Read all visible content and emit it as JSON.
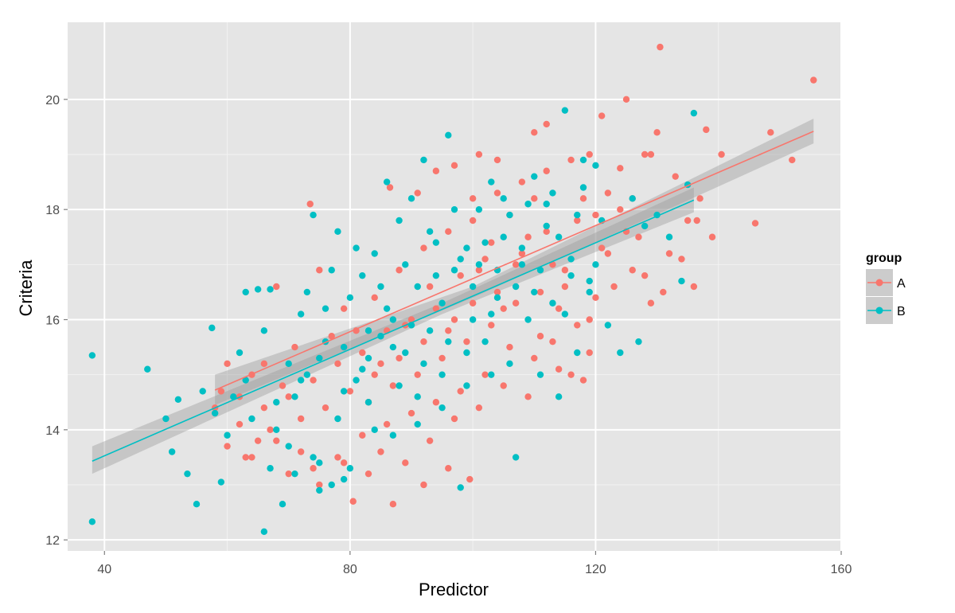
{
  "chart_data": {
    "type": "scatter",
    "title": "",
    "xlabel": "Predictor",
    "ylabel": "Criteria",
    "xlim": [
      34,
      160
    ],
    "ylim": [
      11.8,
      21.4
    ],
    "x_ticks": [
      "40",
      "80",
      "120",
      "160"
    ],
    "y_ticks": [
      "12",
      "14",
      "16",
      "18",
      "20"
    ],
    "x_tick_values": [
      40,
      80,
      120,
      160
    ],
    "y_tick_values": [
      12,
      14,
      16,
      18,
      20
    ],
    "grid": true,
    "legend": {
      "title": "group",
      "position": "right",
      "entries": [
        "A",
        "B"
      ]
    },
    "series": [
      {
        "name": "A",
        "color": "#F8766D",
        "fit": {
          "x": [
            58,
            155.5
          ],
          "y": [
            14.72,
            19.42
          ],
          "se_band": [
            [
              58,
              14.45,
              15.0
            ],
            [
              100,
              16.4,
              16.6
            ],
            [
              155.5,
              19.2,
              19.65
            ]
          ]
        },
        "points": [
          [
            155.5,
            20.35
          ],
          [
            130.5,
            20.95
          ],
          [
            148.5,
            19.4
          ],
          [
            152,
            18.9
          ],
          [
            146,
            17.75
          ],
          [
            140.5,
            19.0
          ],
          [
            138,
            19.45
          ],
          [
            136.5,
            17.8
          ],
          [
            136,
            16.6
          ],
          [
            133,
            18.6
          ],
          [
            130,
            19.4
          ],
          [
            128,
            19.0
          ],
          [
            126,
            18.2
          ],
          [
            124,
            18.75
          ],
          [
            122,
            17.2
          ],
          [
            120,
            17.9
          ],
          [
            118,
            18.2
          ],
          [
            115,
            16.9
          ],
          [
            112,
            17.6
          ],
          [
            110,
            18.2
          ],
          [
            108,
            17.2
          ],
          [
            106,
            17.9
          ],
          [
            104,
            16.5
          ],
          [
            102,
            17.1
          ],
          [
            100,
            16.3
          ],
          [
            98,
            16.8
          ],
          [
            96,
            15.8
          ],
          [
            94,
            16.2
          ],
          [
            92,
            15.6
          ],
          [
            90,
            16.0
          ],
          [
            88,
            15.3
          ],
          [
            86,
            15.8
          ],
          [
            84,
            15.0
          ],
          [
            82,
            15.4
          ],
          [
            80,
            14.7
          ],
          [
            78,
            15.2
          ],
          [
            76,
            14.4
          ],
          [
            74,
            14.9
          ],
          [
            72,
            14.2
          ],
          [
            70,
            14.6
          ],
          [
            68,
            13.8
          ],
          [
            66,
            14.4
          ],
          [
            64,
            13.5
          ],
          [
            62,
            14.1
          ],
          [
            60,
            13.7
          ],
          [
            58,
            14.4
          ],
          [
            73.5,
            18.1
          ],
          [
            68,
            16.6
          ],
          [
            80.5,
            12.7
          ],
          [
            87,
            12.65
          ],
          [
            99.5,
            13.1
          ],
          [
            96,
            13.3
          ],
          [
            92,
            13.0
          ],
          [
            110,
            19.4
          ],
          [
            112,
            19.55
          ],
          [
            121,
            19.7
          ],
          [
            125,
            20.0
          ],
          [
            129,
            19.0
          ],
          [
            104,
            18.9
          ],
          [
            101,
            19.0
          ],
          [
            97,
            18.8
          ],
          [
            94,
            18.7
          ],
          [
            91,
            18.3
          ],
          [
            86.5,
            18.4
          ],
          [
            100,
            17.8
          ],
          [
            103,
            17.4
          ],
          [
            107,
            17.0
          ],
          [
            111,
            16.5
          ],
          [
            114,
            16.2
          ],
          [
            117,
            15.9
          ],
          [
            120,
            16.4
          ],
          [
            123,
            16.6
          ],
          [
            126,
            16.9
          ],
          [
            129,
            16.3
          ],
          [
            132,
            17.2
          ],
          [
            135,
            17.8
          ],
          [
            118,
            14.9
          ],
          [
            114,
            15.1
          ],
          [
            110,
            15.3
          ],
          [
            106,
            15.5
          ],
          [
            102,
            15.0
          ],
          [
            98,
            14.7
          ],
          [
            94,
            14.5
          ],
          [
            90,
            14.3
          ],
          [
            86,
            14.1
          ],
          [
            82,
            13.9
          ],
          [
            78,
            13.5
          ],
          [
            74,
            13.3
          ],
          [
            70,
            13.2
          ],
          [
            84,
            16.4
          ],
          [
            88,
            16.9
          ],
          [
            92,
            17.3
          ],
          [
            96,
            17.6
          ],
          [
            100,
            18.2
          ],
          [
            104,
            18.3
          ],
          [
            108,
            18.5
          ],
          [
            112,
            18.7
          ],
          [
            116,
            18.9
          ],
          [
            119,
            19.0
          ],
          [
            122,
            18.3
          ],
          [
            125,
            17.6
          ],
          [
            128,
            16.8
          ],
          [
            131,
            16.5
          ],
          [
            134,
            17.1
          ],
          [
            137,
            18.2
          ],
          [
            139,
            17.5
          ],
          [
            89,
            15.9
          ],
          [
            93,
            16.6
          ],
          [
            97,
            16.0
          ],
          [
            101,
            16.9
          ],
          [
            105,
            16.2
          ],
          [
            109,
            17.5
          ],
          [
            113,
            17.0
          ],
          [
            117,
            17.8
          ],
          [
            121,
            17.3
          ],
          [
            124,
            18.0
          ],
          [
            127,
            17.5
          ],
          [
            81,
            15.8
          ],
          [
            85,
            15.2
          ],
          [
            79,
            16.2
          ],
          [
            75,
            16.9
          ],
          [
            77,
            15.7
          ],
          [
            83,
            14.5
          ],
          [
            87,
            14.8
          ],
          [
            91,
            15.0
          ],
          [
            95,
            15.3
          ],
          [
            99,
            15.6
          ],
          [
            103,
            15.9
          ],
          [
            107,
            16.3
          ],
          [
            111,
            15.7
          ],
          [
            115,
            16.6
          ],
          [
            119,
            16.0
          ],
          [
            66,
            15.2
          ],
          [
            64,
            15.0
          ],
          [
            62,
            14.6
          ],
          [
            60,
            15.2
          ],
          [
            59,
            14.7
          ],
          [
            63,
            13.5
          ],
          [
            65,
            13.8
          ],
          [
            67,
            14.0
          ],
          [
            69,
            14.8
          ],
          [
            71,
            15.5
          ],
          [
            72,
            13.6
          ],
          [
            75,
            13.0
          ],
          [
            79,
            13.4
          ],
          [
            83,
            13.2
          ],
          [
            85,
            13.6
          ],
          [
            89,
            13.4
          ],
          [
            93,
            13.8
          ],
          [
            97,
            14.2
          ],
          [
            101,
            14.4
          ],
          [
            105,
            14.8
          ],
          [
            109,
            14.6
          ],
          [
            113,
            15.6
          ],
          [
            116,
            15.0
          ],
          [
            119,
            15.4
          ]
        ]
      },
      {
        "name": "B",
        "color": "#00BFC4",
        "fit": {
          "x": [
            38,
            136
          ],
          "y": [
            13.43,
            18.17
          ],
          "se_band": [
            [
              38,
              13.2,
              13.7
            ],
            [
              95,
              16.1,
              16.3
            ],
            [
              136,
              17.95,
              18.4
            ]
          ]
        },
        "points": [
          [
            38,
            15.35
          ],
          [
            38,
            12.33
          ],
          [
            47,
            15.1
          ],
          [
            50,
            14.2
          ],
          [
            52,
            14.55
          ],
          [
            53.5,
            13.2
          ],
          [
            55,
            12.65
          ],
          [
            51,
            13.6
          ],
          [
            56,
            14.7
          ],
          [
            57.5,
            15.85
          ],
          [
            59,
            13.05
          ],
          [
            61,
            14.6
          ],
          [
            63,
            16.5
          ],
          [
            65,
            16.55
          ],
          [
            66,
            12.15
          ],
          [
            67,
            16.55
          ],
          [
            68,
            14.0
          ],
          [
            69,
            12.65
          ],
          [
            70,
            15.2
          ],
          [
            71,
            14.6
          ],
          [
            72,
            16.1
          ],
          [
            73,
            15.0
          ],
          [
            74,
            17.9
          ],
          [
            75,
            13.4
          ],
          [
            76,
            16.2
          ],
          [
            77,
            13.0
          ],
          [
            78,
            17.6
          ],
          [
            79,
            15.5
          ],
          [
            80,
            16.4
          ],
          [
            81,
            14.9
          ],
          [
            82,
            16.8
          ],
          [
            83,
            15.3
          ],
          [
            84,
            17.2
          ],
          [
            85,
            15.7
          ],
          [
            86,
            18.5
          ],
          [
            87,
            16.0
          ],
          [
            88,
            17.8
          ],
          [
            89,
            15.4
          ],
          [
            90,
            18.2
          ],
          [
            91,
            16.6
          ],
          [
            92,
            18.9
          ],
          [
            93,
            15.8
          ],
          [
            94,
            17.4
          ],
          [
            95,
            16.3
          ],
          [
            96,
            19.35
          ],
          [
            97,
            16.9
          ],
          [
            98,
            12.95
          ],
          [
            99,
            17.3
          ],
          [
            100,
            16.0
          ],
          [
            101,
            18.0
          ],
          [
            102,
            15.6
          ],
          [
            103,
            18.5
          ],
          [
            104,
            16.4
          ],
          [
            105,
            17.5
          ],
          [
            106,
            15.2
          ],
          [
            107,
            13.5
          ],
          [
            108,
            17.0
          ],
          [
            109,
            16.0
          ],
          [
            110,
            18.6
          ],
          [
            111,
            15.0
          ],
          [
            112,
            17.7
          ],
          [
            113,
            16.3
          ],
          [
            114,
            14.6
          ],
          [
            115,
            19.8
          ],
          [
            116,
            17.1
          ],
          [
            117,
            15.4
          ],
          [
            118,
            18.9
          ],
          [
            119,
            16.7
          ],
          [
            120,
            18.8
          ],
          [
            121,
            17.8
          ],
          [
            122,
            15.9
          ],
          [
            124,
            15.4
          ],
          [
            126,
            18.2
          ],
          [
            127,
            15.6
          ],
          [
            128,
            17.7
          ],
          [
            130,
            17.9
          ],
          [
            132,
            17.5
          ],
          [
            134,
            16.7
          ],
          [
            136,
            19.75
          ],
          [
            135,
            18.45
          ],
          [
            62,
            15.4
          ],
          [
            64,
            14.2
          ],
          [
            66,
            15.8
          ],
          [
            68,
            14.5
          ],
          [
            70,
            13.7
          ],
          [
            72,
            14.9
          ],
          [
            74,
            13.5
          ],
          [
            76,
            15.6
          ],
          [
            78,
            14.2
          ],
          [
            80,
            13.3
          ],
          [
            82,
            15.1
          ],
          [
            84,
            14.0
          ],
          [
            86,
            16.2
          ],
          [
            88,
            14.8
          ],
          [
            90,
            15.9
          ],
          [
            92,
            15.2
          ],
          [
            94,
            16.8
          ],
          [
            96,
            15.6
          ],
          [
            98,
            17.1
          ],
          [
            100,
            16.6
          ],
          [
            102,
            17.4
          ],
          [
            104,
            16.9
          ],
          [
            106,
            17.9
          ],
          [
            108,
            17.3
          ],
          [
            110,
            16.5
          ],
          [
            112,
            18.1
          ],
          [
            114,
            17.5
          ],
          [
            116,
            16.8
          ],
          [
            118,
            18.4
          ],
          [
            120,
            17.0
          ],
          [
            73,
            16.5
          ],
          [
            77,
            16.9
          ],
          [
            81,
            17.3
          ],
          [
            85,
            16.6
          ],
          [
            89,
            17.0
          ],
          [
            93,
            17.6
          ],
          [
            97,
            18.0
          ],
          [
            101,
            17.0
          ],
          [
            105,
            18.2
          ],
          [
            109,
            18.1
          ],
          [
            113,
            18.3
          ],
          [
            117,
            17.9
          ],
          [
            75,
            15.3
          ],
          [
            79,
            14.7
          ],
          [
            83,
            15.8
          ],
          [
            87,
            15.5
          ],
          [
            91,
            14.6
          ],
          [
            95,
            15.0
          ],
          [
            99,
            15.4
          ],
          [
            103,
            16.1
          ],
          [
            107,
            16.6
          ],
          [
            111,
            16.9
          ],
          [
            115,
            16.1
          ],
          [
            119,
            16.5
          ],
          [
            58,
            14.3
          ],
          [
            60,
            13.9
          ],
          [
            63,
            14.9
          ],
          [
            67,
            13.3
          ],
          [
            71,
            13.2
          ],
          [
            75,
            12.9
          ],
          [
            79,
            13.1
          ],
          [
            83,
            14.5
          ],
          [
            87,
            13.9
          ],
          [
            91,
            14.1
          ],
          [
            95,
            14.4
          ],
          [
            99,
            14.8
          ],
          [
            103,
            15.0
          ]
        ]
      }
    ]
  }
}
